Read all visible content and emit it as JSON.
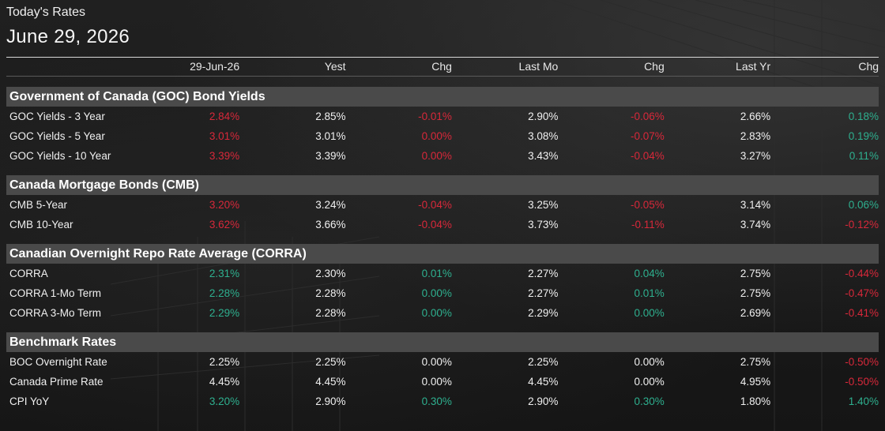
{
  "header": {
    "subtitle": "Today's Rates",
    "date": "June 29, 2026"
  },
  "columns": [
    "",
    "29-Jun-26",
    "Yest",
    "Chg",
    "Last Mo",
    "Chg",
    "Last Yr",
    "Chg"
  ],
  "colors": {
    "positive": "#2eb08f",
    "negative": "#d8283a",
    "neutral": "#f0f0f0",
    "section_bg": "#4a4a4a"
  },
  "sections": [
    {
      "title": "Government of Canada (GOC) Bond Yields",
      "rows": [
        {
          "name": "GOC Yields - 3 Year",
          "values": [
            "2.84%",
            "2.85%",
            "-0.01%",
            "2.90%",
            "-0.06%",
            "2.66%",
            "0.18%"
          ],
          "tones": [
            "down",
            "neu",
            "down",
            "neu",
            "down",
            "neu",
            "up"
          ]
        },
        {
          "name": "GOC Yields - 5 Year",
          "values": [
            "3.01%",
            "3.01%",
            "0.00%",
            "3.08%",
            "-0.07%",
            "2.83%",
            "0.19%"
          ],
          "tones": [
            "down",
            "neu",
            "down",
            "neu",
            "down",
            "neu",
            "up"
          ]
        },
        {
          "name": "GOC Yields - 10 Year",
          "values": [
            "3.39%",
            "3.39%",
            "0.00%",
            "3.43%",
            "-0.04%",
            "3.27%",
            "0.11%"
          ],
          "tones": [
            "down",
            "neu",
            "down",
            "neu",
            "down",
            "neu",
            "up"
          ]
        }
      ]
    },
    {
      "title": "Canada Mortgage Bonds (CMB)",
      "rows": [
        {
          "name": "CMB 5-Year",
          "values": [
            "3.20%",
            "3.24%",
            "-0.04%",
            "3.25%",
            "-0.05%",
            "3.14%",
            "0.06%"
          ],
          "tones": [
            "down",
            "neu",
            "down",
            "neu",
            "down",
            "neu",
            "up"
          ]
        },
        {
          "name": "CMB 10-Year",
          "values": [
            "3.62%",
            "3.66%",
            "-0.04%",
            "3.73%",
            "-0.11%",
            "3.74%",
            "-0.12%"
          ],
          "tones": [
            "down",
            "neu",
            "down",
            "neu",
            "down",
            "neu",
            "down"
          ]
        }
      ]
    },
    {
      "title": "Canadian Overnight Repo Rate Average (CORRA)",
      "rows": [
        {
          "name": "CORRA",
          "values": [
            "2.31%",
            "2.30%",
            "0.01%",
            "2.27%",
            "0.04%",
            "2.75%",
            "-0.44%"
          ],
          "tones": [
            "up",
            "neu",
            "up",
            "neu",
            "up",
            "neu",
            "down"
          ]
        },
        {
          "name": "CORRA 1-Mo Term",
          "values": [
            "2.28%",
            "2.28%",
            "0.00%",
            "2.27%",
            "0.01%",
            "2.75%",
            "-0.47%"
          ],
          "tones": [
            "up",
            "neu",
            "up",
            "neu",
            "up",
            "neu",
            "down"
          ]
        },
        {
          "name": "CORRA 3-Mo Term",
          "values": [
            "2.29%",
            "2.28%",
            "0.00%",
            "2.29%",
            "0.00%",
            "2.69%",
            "-0.41%"
          ],
          "tones": [
            "up",
            "neu",
            "up",
            "neu",
            "up",
            "neu",
            "down"
          ]
        }
      ]
    },
    {
      "title": "Benchmark Rates",
      "rows": [
        {
          "name": "BOC Overnight Rate",
          "values": [
            "2.25%",
            "2.25%",
            "0.00%",
            "2.25%",
            "0.00%",
            "2.75%",
            "-0.50%"
          ],
          "tones": [
            "neu",
            "neu",
            "neu",
            "neu",
            "neu",
            "neu",
            "down"
          ]
        },
        {
          "name": "Canada Prime Rate",
          "values": [
            "4.45%",
            "4.45%",
            "0.00%",
            "4.45%",
            "0.00%",
            "4.95%",
            "-0.50%"
          ],
          "tones": [
            "neu",
            "neu",
            "neu",
            "neu",
            "neu",
            "neu",
            "down"
          ]
        },
        {
          "name": "CPI YoY",
          "values": [
            "3.20%",
            "2.90%",
            "0.30%",
            "2.90%",
            "0.30%",
            "1.80%",
            "1.40%"
          ],
          "tones": [
            "up",
            "neu",
            "up",
            "neu",
            "up",
            "neu",
            "up"
          ]
        }
      ]
    }
  ]
}
